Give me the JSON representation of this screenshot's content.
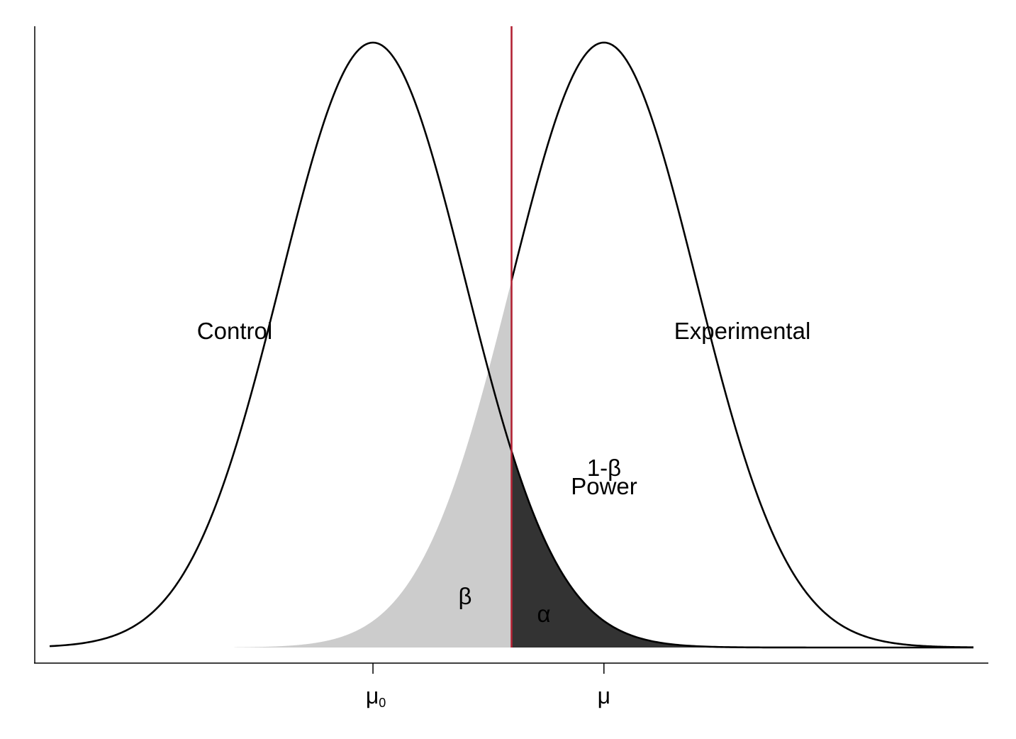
{
  "chart_data": {
    "type": "area",
    "title": "",
    "xlabel": "",
    "ylabel": "",
    "grid": false,
    "legend": "none",
    "distributions": [
      {
        "name": "Control",
        "mean": 0,
        "sd": 1
      },
      {
        "name": "Experimental",
        "mean": 2.5,
        "sd": 1
      }
    ],
    "critical_value": 1.5,
    "xlim": [
      -3.5,
      6.5
    ],
    "ylim": [
      -0.01,
      0.415
    ],
    "x_ticks": [
      {
        "value": 0,
        "label": "μ",
        "sub": "0"
      },
      {
        "value": 2.5,
        "label": "μ",
        "sub": ""
      }
    ],
    "annotations": {
      "control": "Control",
      "experimental": "Experimental",
      "one_minus_beta": "1-β",
      "power": "Power",
      "beta": "β",
      "alpha": "α"
    },
    "colors": {
      "curve": "#000000",
      "critical_line": "#b22234",
      "beta_fill": "#cccccc",
      "alpha_fill": "#333333"
    }
  }
}
